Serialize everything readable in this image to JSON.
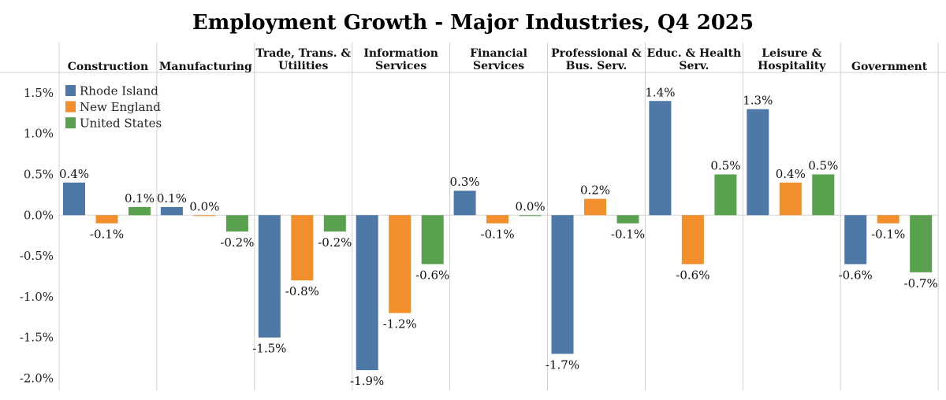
{
  "chart_data": {
    "type": "bar",
    "title": "Employment Growth - Major Industries, Q4 2025",
    "categories": [
      [
        "Construction"
      ],
      [
        "Manufacturing"
      ],
      [
        "Trade, Trans. &",
        "Utilities"
      ],
      [
        "Information",
        "Services"
      ],
      [
        "Financial",
        "Services"
      ],
      [
        "Professional &",
        "Bus. Serv."
      ],
      [
        "Educ. & Health",
        "Serv."
      ],
      [
        "Leisure &",
        "Hospitality"
      ],
      [
        "Government"
      ]
    ],
    "series": [
      {
        "name": "Rhode Island",
        "color": "#4e79a7",
        "values": [
          0.4,
          0.1,
          -1.5,
          -1.9,
          0.3,
          -1.7,
          1.4,
          1.3,
          -0.6
        ]
      },
      {
        "name": "New England",
        "color": "#f28e2b",
        "values": [
          -0.1,
          0.0,
          -0.8,
          -1.2,
          -0.1,
          0.2,
          -0.6,
          0.4,
          -0.1
        ]
      },
      {
        "name": "United States",
        "color": "#59a14f",
        "values": [
          0.1,
          -0.2,
          -0.2,
          -0.6,
          0.0,
          -0.1,
          0.5,
          0.5,
          -0.7
        ]
      }
    ],
    "yticks": [
      1.5,
      1.0,
      0.5,
      0.0,
      -0.5,
      -1.0,
      -1.5,
      -2.0
    ],
    "ytick_labels": [
      "1.5%",
      "1.0%",
      "0.5%",
      "0.0%",
      "-0.5%",
      "-1.0%",
      "-1.5%",
      "-2.0%"
    ],
    "ylim": [
      -2.15,
      1.75
    ],
    "value_suffix": "%",
    "xlabel": "",
    "ylabel": "",
    "legend_position": "top-left",
    "grid": false
  }
}
